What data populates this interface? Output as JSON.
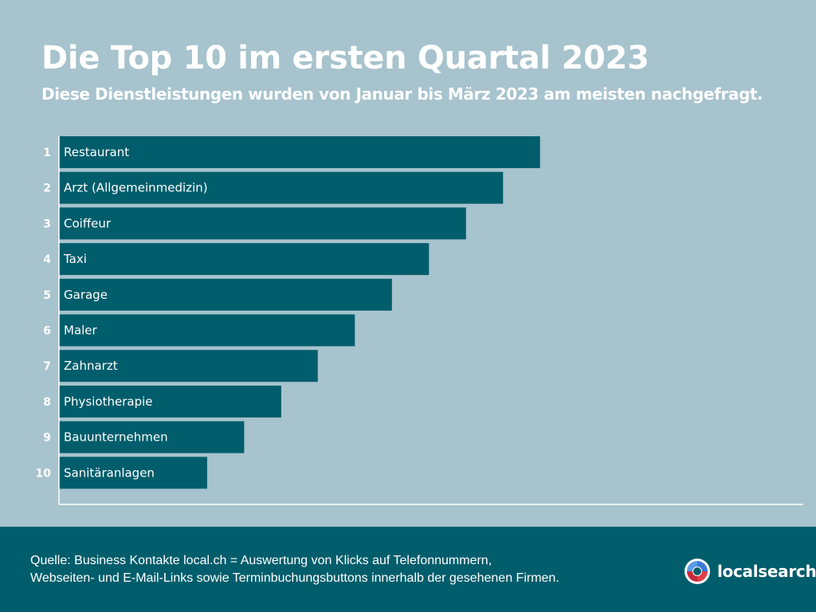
{
  "header": {
    "title": "Die Top 10 im ersten Quartal 2023",
    "subtitle": "Diese Dienstleistungen wurden von Januar bis März 2023 am meisten nachgefragt."
  },
  "chart_data": {
    "type": "bar",
    "orientation": "horizontal",
    "title": "Die Top 10 im ersten Quartal 2023",
    "subtitle": "Diese Dienstleistungen wurden von Januar bis März 2023 am meisten nachgefragt.",
    "ranks": [
      "1",
      "2",
      "3",
      "4",
      "5",
      "6",
      "7",
      "8",
      "9",
      "10"
    ],
    "categories": [
      "Restaurant",
      "Arzt (Allgemeinmedizin)",
      "Coiffeur",
      "Taxi",
      "Garage",
      "Maler",
      "Zahnarzt",
      "Physiotherapie",
      "Bauunternehmen",
      "Sanitäranlagen"
    ],
    "values": [
      10,
      9.23,
      8.46,
      7.69,
      6.92,
      6.15,
      5.38,
      4.62,
      3.85,
      3.08
    ],
    "xlim": [
      0,
      15.47
    ],
    "grid": false,
    "bar_color": "#005d6b"
  },
  "footer": {
    "source_line1": "Quelle: Business Kontakte local.ch = Auswertung von Klicks auf Telefonnummern,",
    "source_line2": "Webseiten- und E-Mail-Links sowie Terminbuchungsbuttons innerhalb der gesehenen Firmen.",
    "logo_text": "localsearch"
  },
  "colors": {
    "background": "#a7c3cd",
    "bar": "#005d6b",
    "footer": "#005d6b",
    "text": "#ffffff"
  }
}
